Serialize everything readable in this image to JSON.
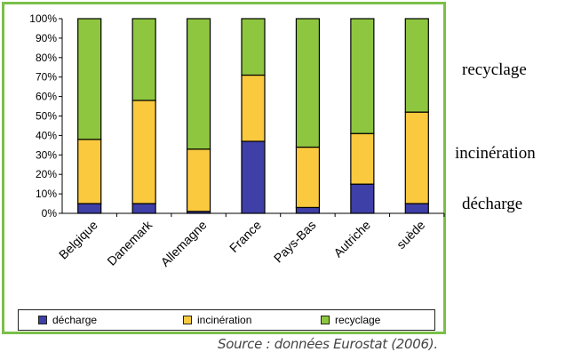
{
  "chart_data": {
    "type": "bar",
    "stacked": true,
    "normalized": true,
    "categories": [
      "Belgique",
      "Danemark",
      "Allemagne",
      "France",
      "Pays-Bas",
      "Autriche",
      "suède"
    ],
    "series": [
      {
        "name": "décharge",
        "color": "#3f3fa8",
        "values": [
          5,
          5,
          1,
          37,
          3,
          15,
          5
        ]
      },
      {
        "name": "incinération",
        "color": "#fbc93d",
        "values": [
          33,
          53,
          32,
          34,
          31,
          26,
          47
        ]
      },
      {
        "name": "recyclage",
        "color": "#8ec63f",
        "values": [
          62,
          42,
          67,
          29,
          66,
          59,
          48
        ]
      }
    ],
    "yticks": [
      "0%",
      "10%",
      "20%",
      "30%",
      "40%",
      "50%",
      "60%",
      "70%",
      "80%",
      "90%",
      "100%"
    ],
    "ylim": [
      0,
      100
    ],
    "legend_position": "bottom",
    "grid": false
  },
  "side_labels": {
    "recyclage": "recyclage",
    "incineration": "incinération",
    "decharge": "décharge"
  },
  "source": "Source : données Eurostat (2006)."
}
